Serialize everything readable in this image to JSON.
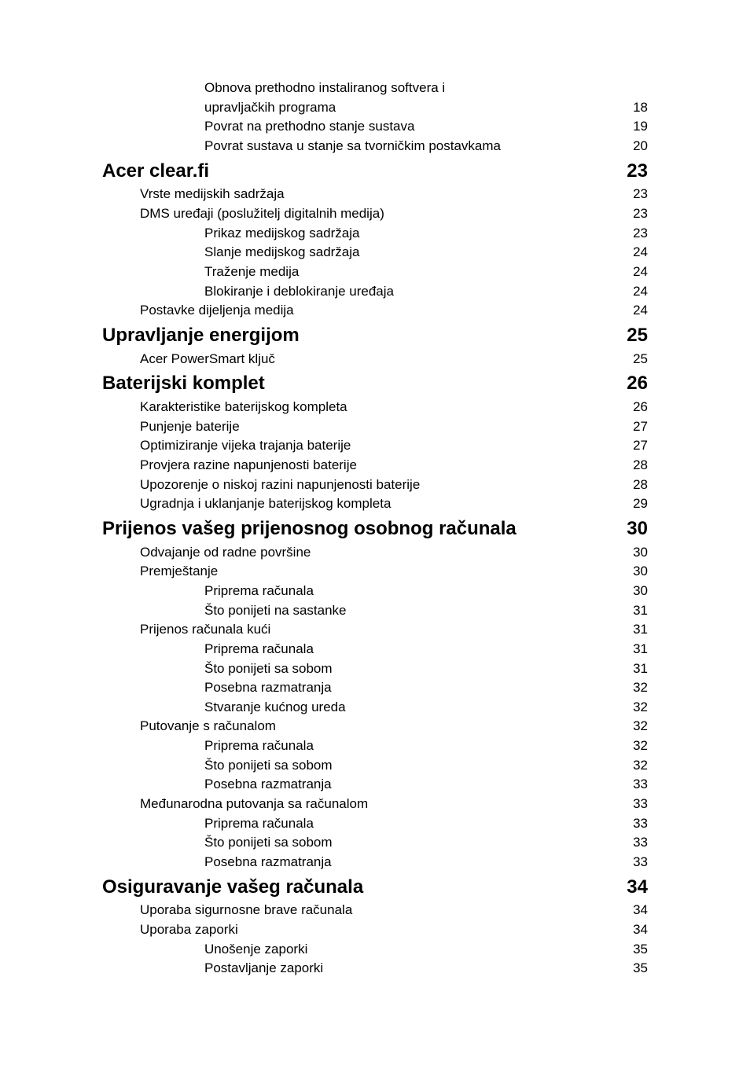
{
  "toc": [
    {
      "level": "h3-offset",
      "label": "Obnova prethodno instaliranog softvera i",
      "page": ""
    },
    {
      "level": "h3-offset",
      "label": "upravljačkih programa",
      "page": "18"
    },
    {
      "level": "h3",
      "label": "Povrat na prethodno stanje sustava",
      "page": "19"
    },
    {
      "level": "h3",
      "label": "Povrat sustava u stanje sa tvorničkim postavkama",
      "page": "20"
    },
    {
      "level": "h1",
      "label": "Acer clear.fi",
      "page": "23"
    },
    {
      "level": "h2",
      "label": "Vrste medijskih sadržaja",
      "page": "23"
    },
    {
      "level": "h2",
      "label": "DMS uređaji (poslužitelj digitalnih medija)",
      "page": "23"
    },
    {
      "level": "h3",
      "label": "Prikaz medijskog sadržaja",
      "page": "23"
    },
    {
      "level": "h3",
      "label": "Slanje medijskog sadržaja",
      "page": "24"
    },
    {
      "level": "h3",
      "label": "Traženje medija",
      "page": "24"
    },
    {
      "level": "h3",
      "label": "Blokiranje i deblokiranje uređaja",
      "page": "24"
    },
    {
      "level": "h2",
      "label": "Postavke dijeljenja medija",
      "page": "24"
    },
    {
      "level": "h1",
      "label": "Upravljanje energijom",
      "page": "25"
    },
    {
      "level": "h2",
      "label": "Acer PowerSmart ključ",
      "page": "25"
    },
    {
      "level": "h1",
      "label": "Baterijski komplet",
      "page": "26"
    },
    {
      "level": "h2",
      "label": "Karakteristike baterijskog kompleta",
      "page": "26"
    },
    {
      "level": "h2",
      "label": "Punjenje baterije",
      "page": "27"
    },
    {
      "level": "h2",
      "label": "Optimiziranje vijeka trajanja baterije",
      "page": "27"
    },
    {
      "level": "h2",
      "label": "Provjera razine napunjenosti baterije",
      "page": "28"
    },
    {
      "level": "h2",
      "label": "Upozorenje o niskoj razini napunjenosti baterije",
      "page": "28"
    },
    {
      "level": "h2",
      "label": "Ugradnja i uklanjanje baterijskog kompleta",
      "page": "29"
    },
    {
      "level": "h1",
      "label": "Prijenos vašeg prijenosnog osobnog računala",
      "page": "30"
    },
    {
      "level": "h2",
      "label": "Odvajanje od radne površine",
      "page": "30"
    },
    {
      "level": "h2",
      "label": "Premještanje",
      "page": "30"
    },
    {
      "level": "h3",
      "label": "Priprema računala",
      "page": "30"
    },
    {
      "level": "h3",
      "label": "Što ponijeti na sastanke",
      "page": "31"
    },
    {
      "level": "h2",
      "label": "Prijenos računala kući",
      "page": "31"
    },
    {
      "level": "h3",
      "label": "Priprema računala",
      "page": "31"
    },
    {
      "level": "h3",
      "label": "Što ponijeti sa sobom",
      "page": "31"
    },
    {
      "level": "h3",
      "label": "Posebna razmatranja",
      "page": "32"
    },
    {
      "level": "h3",
      "label": "Stvaranje kućnog ureda",
      "page": "32"
    },
    {
      "level": "h2",
      "label": "Putovanje s računalom",
      "page": "32"
    },
    {
      "level": "h3",
      "label": "Priprema računala",
      "page": "32"
    },
    {
      "level": "h3",
      "label": "Što ponijeti sa sobom",
      "page": "32"
    },
    {
      "level": "h3",
      "label": "Posebna razmatranja",
      "page": "33"
    },
    {
      "level": "h2",
      "label": "Međunarodna putovanja sa računalom",
      "page": "33"
    },
    {
      "level": "h3",
      "label": "Priprema računala",
      "page": "33"
    },
    {
      "level": "h3",
      "label": "Što ponijeti sa sobom",
      "page": "33"
    },
    {
      "level": "h3",
      "label": "Posebna razmatranja",
      "page": "33"
    },
    {
      "level": "h1",
      "label": "Osiguravanje vašeg računala",
      "page": "34"
    },
    {
      "level": "h2",
      "label": "Uporaba sigurnosne brave računala",
      "page": "34"
    },
    {
      "level": "h2",
      "label": "Uporaba zaporki",
      "page": "34"
    },
    {
      "level": "h3",
      "label": "Unošenje zaporki",
      "page": "35"
    },
    {
      "level": "h3",
      "label": "Postavljanje zaporki",
      "page": "35"
    }
  ]
}
